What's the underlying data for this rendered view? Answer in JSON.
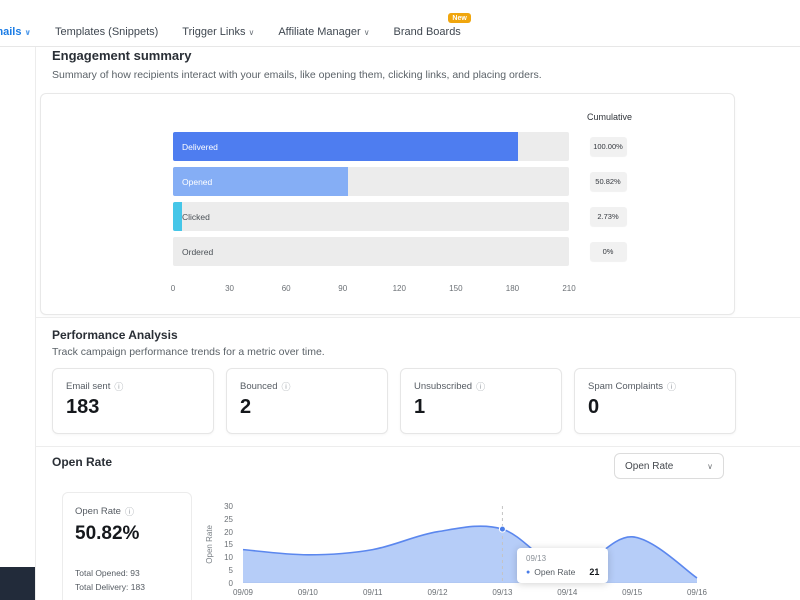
{
  "icons": {
    "chevron_down": "∨",
    "info": "ⓘ",
    "dot": "●"
  },
  "nav": {
    "items": [
      {
        "label": "Emails"
      },
      {
        "label": "Templates (Snippets)"
      },
      {
        "label": "Trigger Links"
      },
      {
        "label": "Affiliate Manager"
      },
      {
        "label": "Brand Boards",
        "badge": "New"
      }
    ]
  },
  "engagement": {
    "title": "Engagement summary",
    "subtitle": "Summary of how recipients interact with your emails, like opening them, clicking links, and placing orders.",
    "cumulative_header": "Cumulative"
  },
  "chart_data": [
    {
      "type": "bar",
      "title": "Engagement summary funnel",
      "orientation": "horizontal",
      "categories": [
        "Delivered",
        "Opened",
        "Clicked",
        "Ordered"
      ],
      "values": [
        183,
        93,
        5,
        0
      ],
      "cumulative_labels": [
        "100.00%",
        "50.82%",
        "2.73%",
        "0%"
      ],
      "xlim": [
        0,
        210
      ],
      "xticks": [
        0,
        30,
        60,
        90,
        120,
        150,
        180,
        210
      ],
      "bar_colors": [
        "#4e7df0",
        "#85aef5",
        "#45c6e8",
        "#ececec"
      ],
      "track_color": "#ececec"
    },
    {
      "type": "area",
      "title": "Open Rate over time",
      "x": [
        "09/09",
        "09/10",
        "09/11",
        "09/12",
        "09/13",
        "09/14",
        "09/15",
        "09/16"
      ],
      "series": [
        {
          "name": "Open Rate",
          "values": [
            13,
            11,
            13,
            20,
            21,
            5,
            18,
            2
          ]
        }
      ],
      "ylabel": "Open Rate",
      "ylim": [
        0,
        30
      ],
      "yticks": [
        0,
        5,
        10,
        15,
        20,
        25,
        30
      ],
      "fill_color": "#a9c4f7",
      "line_color": "#5b87ee",
      "legend_position": "tooltip",
      "grid": false,
      "tooltip": {
        "x": "09/13",
        "series": "Open Rate",
        "value": "21",
        "point_index": 4
      }
    }
  ],
  "performance": {
    "title": "Performance Analysis",
    "subtitle": "Track campaign performance trends for a metric over time.",
    "stats": [
      {
        "label": "Email sent",
        "value": "183"
      },
      {
        "label": "Bounced",
        "value": "2"
      },
      {
        "label": "Unsubscribed",
        "value": "1"
      },
      {
        "label": "Spam Complaints",
        "value": "0"
      }
    ]
  },
  "open_rate": {
    "title": "Open Rate",
    "dropdown_value": "Open Rate",
    "summary": {
      "label": "Open Rate",
      "value": "50.82%",
      "total_opened": "Total Opened: 93",
      "total_delivery": "Total Delivery: 183"
    }
  }
}
